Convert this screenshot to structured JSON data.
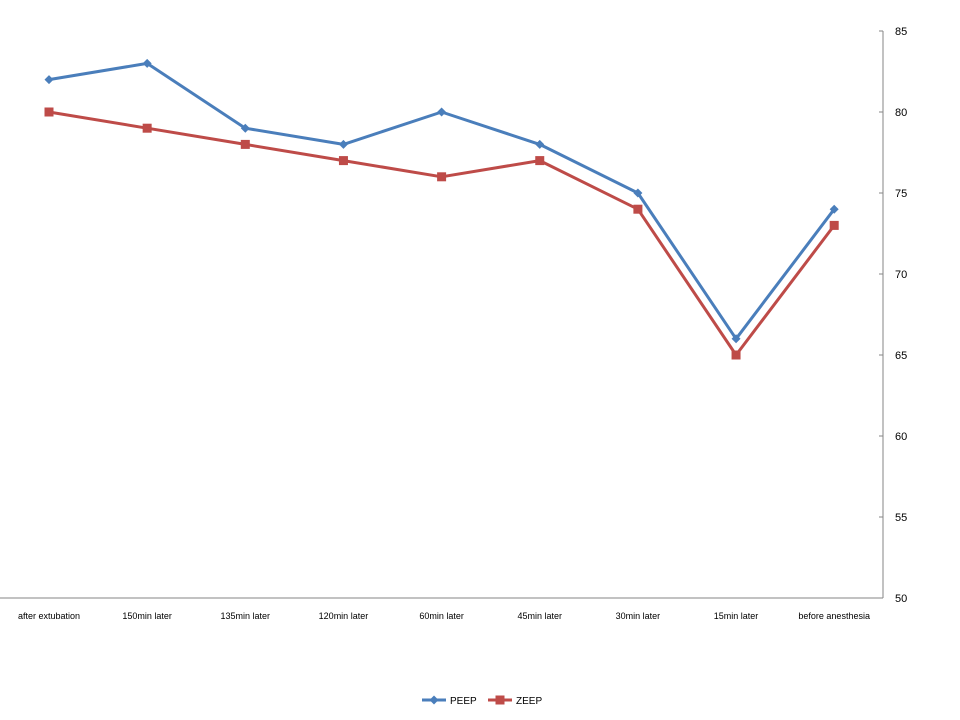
{
  "chart_data": {
    "type": "line",
    "categories": [
      "after extubation",
      "150min later",
      "135min later",
      "120min later",
      "60min later",
      "45min later",
      "30min later",
      "15min later",
      "before anesthesia"
    ],
    "series": [
      {
        "name": "PEEP",
        "values": [
          82,
          83,
          79,
          78,
          80,
          78,
          75,
          66,
          74
        ],
        "color": "#4A7EBB",
        "marker": "diamond"
      },
      {
        "name": "ZEEP",
        "values": [
          80,
          79,
          78,
          77,
          76,
          77,
          74,
          65,
          73
        ],
        "color": "#BE4B48",
        "marker": "square"
      }
    ],
    "y_ticks": [
      "50",
      "55",
      "60",
      "65",
      "70",
      "75",
      "80",
      "85"
    ],
    "ylim": [
      50,
      85
    ],
    "y_axis_side": "right",
    "grid": false,
    "legend_position": "bottom"
  }
}
